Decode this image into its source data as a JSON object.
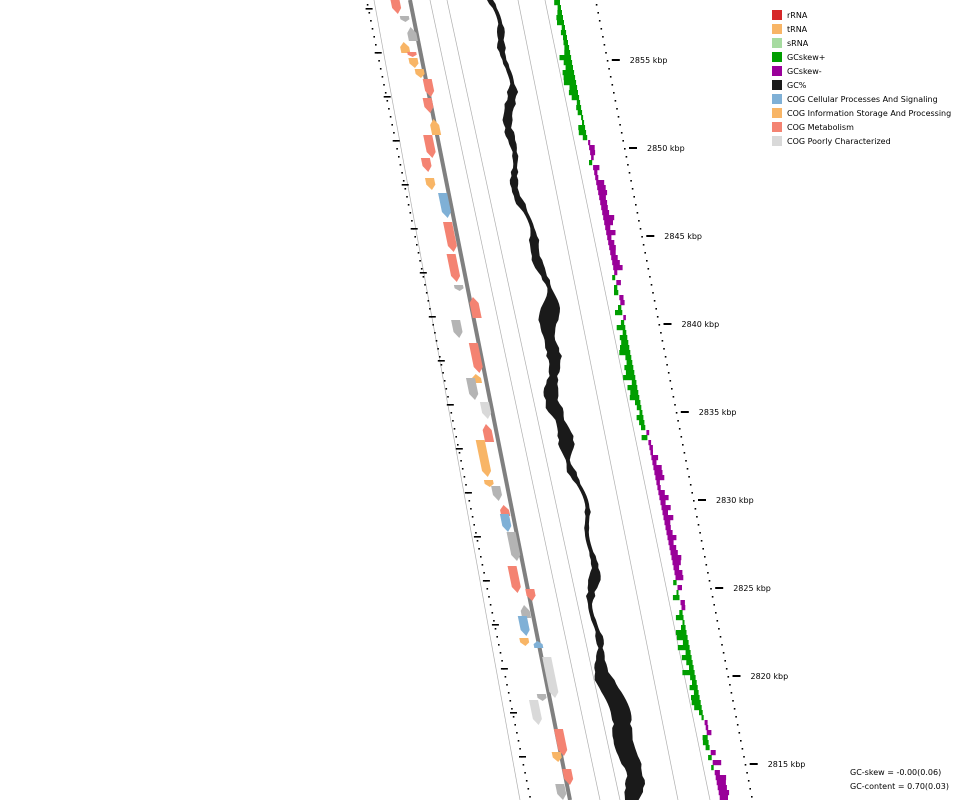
{
  "legend": [
    {
      "label": "rRNA",
      "color": "#d62728"
    },
    {
      "label": "tRNA",
      "color": "#f8b566"
    },
    {
      "label": "sRNA",
      "color": "#a6dba0"
    },
    {
      "label": "GCskew+",
      "color": "#009e00"
    },
    {
      "label": "GCskew-",
      "color": "#990099"
    },
    {
      "label": "GC%",
      "color": "#1a1a1a"
    },
    {
      "label": "COG Cellular Processes And Signaling",
      "color": "#7fb0d6"
    },
    {
      "label": "COG Information Storage And Processing",
      "color": "#f8b566"
    },
    {
      "label": "COG Metabolism",
      "color": "#f48372"
    },
    {
      "label": "COG Poorly Characterized",
      "color": "#d9d9d9"
    }
  ],
  "axis": {
    "ticks": [
      "2855 kbp",
      "2850 kbp",
      "2845 kbp",
      "2840 kbp",
      "2835 kbp",
      "2830 kbp",
      "2825 kbp",
      "2820 kbp",
      "2815 kbp"
    ],
    "unit": "kbp"
  },
  "stats": {
    "gc_skew": "GC-skew = -0.00(0.06)",
    "gc_content": "GC-content = 0.70(0.03)"
  },
  "colors": {
    "backbone": "#808080",
    "ring_line": "#b0b0b0",
    "gc_content": "#1a1a1a",
    "skew_pos": "#009e00",
    "skew_neg": "#990099",
    "cog_cellular": "#7fb0d6",
    "cog_information": "#f8b566",
    "cog_metabolism": "#f48372",
    "cog_poorly": "#d9d9d9",
    "cog_unassigned": "#b4b4b4"
  }
}
